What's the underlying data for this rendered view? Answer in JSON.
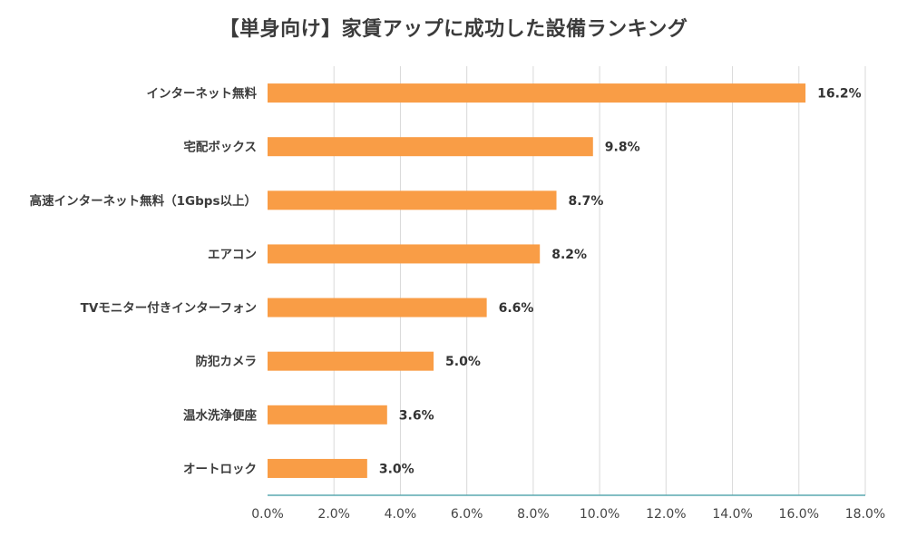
{
  "chart_data": {
    "type": "bar",
    "orientation": "horizontal",
    "title": "【単身向け】家賃アップに成功した設備ランキング",
    "categories": [
      "インターネット無料",
      "宅配ボックス",
      "高速インターネット無料（1Gbps以上）",
      "エアコン",
      "TVモニター付きインターフォン",
      "防犯カメラ",
      "温水洗浄便座",
      "オートロック"
    ],
    "values": [
      16.2,
      9.8,
      8.7,
      8.2,
      6.6,
      5.0,
      3.6,
      3.0
    ],
    "value_labels": [
      "16.2%",
      "9.8%",
      "8.7%",
      "8.2%",
      "6.6%",
      "5.0%",
      "3.6%",
      "3.0%"
    ],
    "x_ticks": [
      "0.0%",
      "2.0%",
      "4.0%",
      "6.0%",
      "8.0%",
      "10.0%",
      "12.0%",
      "14.0%",
      "16.0%",
      "18.0%"
    ],
    "xlim": [
      0,
      18
    ],
    "xlabel": "",
    "ylabel": "",
    "grid": "vertical",
    "colors": {
      "bar": "#F99D46",
      "grid": "#d9d9d9",
      "axis": "#5aa9b0",
      "text": "#3b3b3b"
    }
  }
}
